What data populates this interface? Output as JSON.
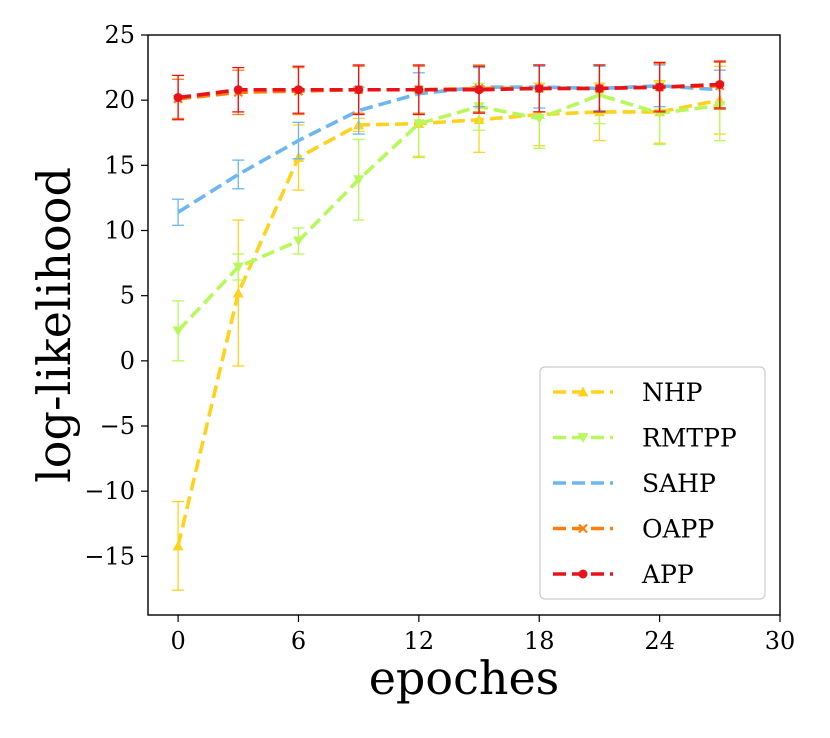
{
  "chart_data": {
    "type": "line",
    "xlabel": "epoches",
    "ylabel": "log-likelihood",
    "xlim": [
      -1.5,
      30
    ],
    "ylim": [
      -19.5,
      25
    ],
    "xticks": [
      0,
      6,
      12,
      18,
      24,
      30
    ],
    "yticks": [
      25,
      20,
      15,
      10,
      5,
      0,
      -5,
      -10,
      -15
    ],
    "ytick_labels": [
      "25",
      "20",
      "15",
      "10",
      "5",
      "0",
      "−5",
      "−10",
      "−15"
    ],
    "grid": false,
    "legend_position": "bottom-right",
    "x": [
      0,
      3,
      6,
      9,
      12,
      15,
      18,
      21,
      24,
      27
    ],
    "series": [
      {
        "name": "NHP",
        "color": "#FFD21F",
        "marker": "triangle-up",
        "values": [
          -14.2,
          5.2,
          15.6,
          18.1,
          18.2,
          18.5,
          18.9,
          19.1,
          19.1,
          20.0
        ],
        "err": [
          3.4,
          5.6,
          2.5,
          0.5,
          2.6,
          2.5,
          2.4,
          2.2,
          2.4,
          2.6
        ]
      },
      {
        "name": "RMTPP",
        "color": "#B7F85A",
        "marker": "triangle-down",
        "values": [
          2.3,
          7.2,
          9.2,
          13.9,
          18.2,
          19.5,
          18.6,
          20.4,
          19.0,
          19.6
        ],
        "err": [
          2.3,
          1.0,
          1.0,
          3.1,
          2.5,
          1.8,
          2.3,
          2.2,
          2.4,
          2.7
        ]
      },
      {
        "name": "SAHP",
        "color": "#6CB6F2",
        "marker": "none",
        "values": [
          11.4,
          14.3,
          16.9,
          19.2,
          20.5,
          21.0,
          21.0,
          20.9,
          21.1,
          20.8
        ],
        "err": [
          1.0,
          1.1,
          1.4,
          1.8,
          1.6,
          1.5,
          1.6,
          1.7,
          1.6,
          1.5
        ]
      },
      {
        "name": "OAPP",
        "color": "#FF7F0E",
        "marker": "x",
        "values": [
          20.1,
          20.6,
          20.7,
          20.8,
          20.8,
          20.9,
          20.9,
          20.9,
          21.0,
          21.1
        ],
        "err": [
          1.5,
          1.7,
          1.8,
          1.8,
          1.8,
          1.8,
          1.8,
          1.8,
          1.8,
          1.8
        ]
      },
      {
        "name": "APP",
        "color": "#E8131A",
        "marker": "circle",
        "values": [
          20.2,
          20.8,
          20.8,
          20.8,
          20.8,
          20.8,
          20.9,
          20.9,
          21.0,
          21.2
        ],
        "err": [
          1.7,
          1.7,
          1.8,
          1.9,
          1.9,
          1.8,
          1.8,
          1.8,
          1.9,
          1.8
        ]
      }
    ]
  }
}
